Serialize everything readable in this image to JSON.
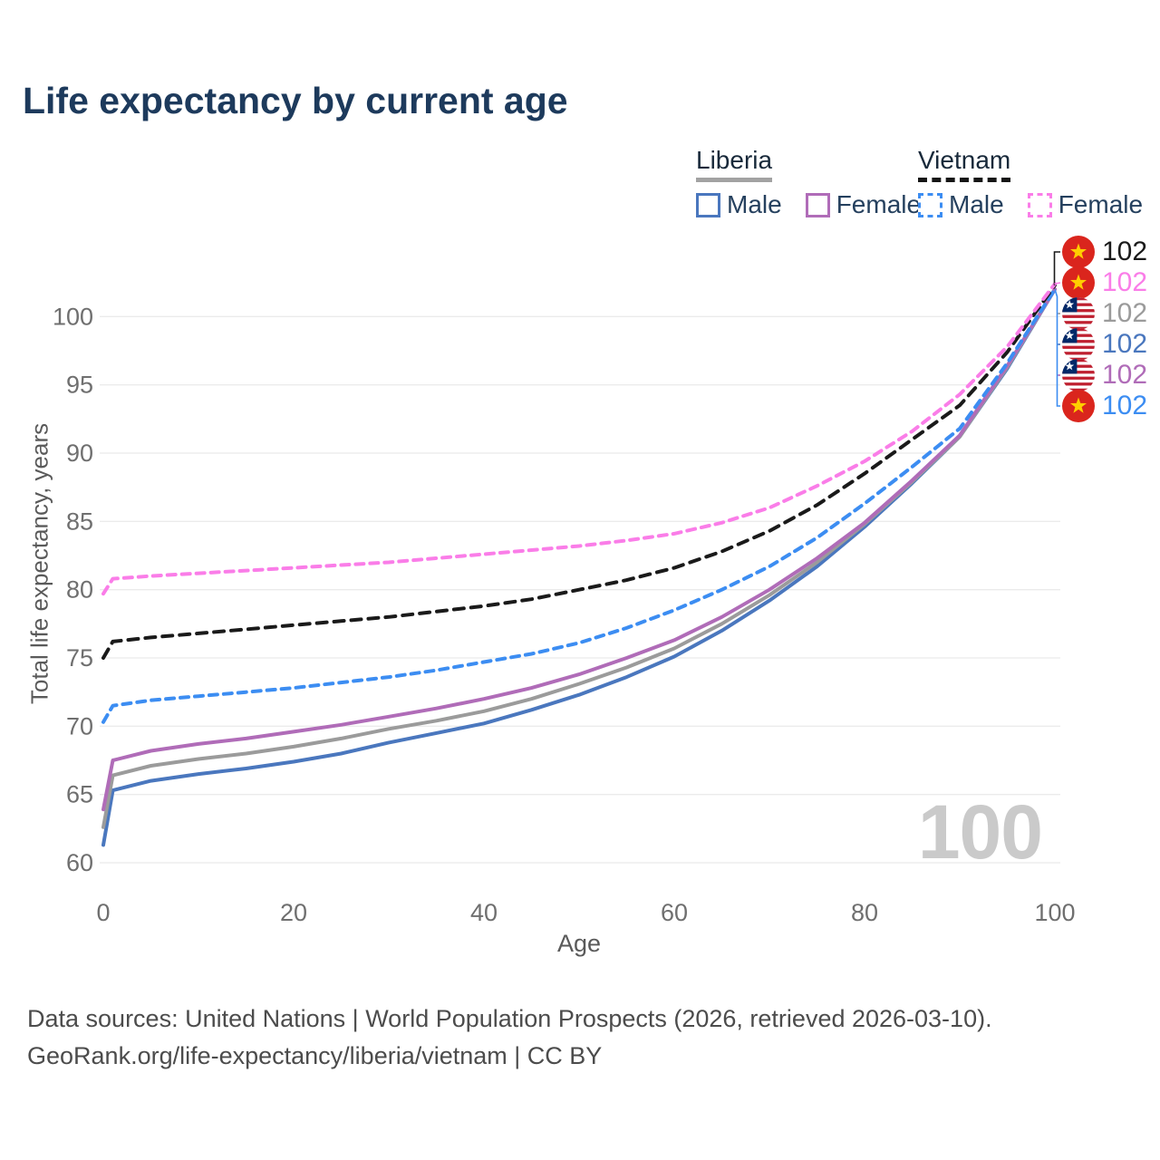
{
  "title": "Life expectancy by current age",
  "legend": {
    "groups": [
      {
        "country": "Liberia",
        "line_style": "solid",
        "underline_color": "#a2a2a2",
        "items": [
          {
            "label": "Male",
            "color": "#4a77be",
            "dash": "solid"
          },
          {
            "label": "Female",
            "color": "#b06cb8",
            "dash": "solid"
          }
        ]
      },
      {
        "country": "Vietnam",
        "line_style": "dashed",
        "underline_color": "#151515",
        "items": [
          {
            "label": "Male",
            "color": "#3c8df2",
            "dash": "dashed"
          },
          {
            "label": "Female",
            "color": "#fa7de8",
            "dash": "dashed"
          }
        ]
      }
    ]
  },
  "colors": {
    "grid": "#ebebeb",
    "tick_text": "#6f6f6f",
    "axis_title": "#5a5a5a",
    "title_text": "#1d3a5c",
    "watermark": "#cacaca",
    "footer_text": "#4c4c4c"
  },
  "chart_data": {
    "type": "line",
    "title": "Life expectancy by current age",
    "xlabel": "Age",
    "ylabel": "Total life expectancy, years",
    "xlim": [
      0,
      100
    ],
    "ylim": [
      60,
      102.5
    ],
    "xticks": [
      0,
      20,
      40,
      60,
      80,
      100
    ],
    "yticks": [
      60,
      65,
      70,
      75,
      80,
      85,
      90,
      95,
      100
    ],
    "grid": "horizontal",
    "legend_position": "top-right",
    "x": [
      0,
      1,
      5,
      10,
      15,
      20,
      25,
      30,
      35,
      40,
      45,
      50,
      55,
      60,
      65,
      70,
      75,
      80,
      85,
      90,
      95,
      100
    ],
    "series": [
      {
        "id": "liberia_male",
        "name": "Liberia Male",
        "color": "#4a77be",
        "dash": "solid",
        "values": [
          61.3,
          65.3,
          66.0,
          66.5,
          66.9,
          67.4,
          68.0,
          68.8,
          69.5,
          70.2,
          71.2,
          72.3,
          73.6,
          75.1,
          77.0,
          79.2,
          81.7,
          84.6,
          87.8,
          91.2,
          96.2,
          102.0
        ]
      },
      {
        "id": "liberia_total",
        "name": "Liberia",
        "color": "#9b9b9b",
        "dash": "solid",
        "values": [
          62.6,
          66.4,
          67.1,
          67.6,
          68.0,
          68.5,
          69.1,
          69.8,
          70.4,
          71.1,
          72.0,
          73.1,
          74.3,
          75.7,
          77.5,
          79.6,
          82.0,
          84.8,
          87.9,
          91.2,
          96.3,
          102.0
        ]
      },
      {
        "id": "liberia_female",
        "name": "Liberia Female",
        "color": "#b06cb8",
        "dash": "solid",
        "values": [
          63.9,
          67.5,
          68.2,
          68.7,
          69.1,
          69.6,
          70.1,
          70.7,
          71.3,
          72.0,
          72.8,
          73.8,
          75.0,
          76.3,
          78.0,
          80.0,
          82.3,
          84.9,
          88.0,
          91.3,
          96.4,
          102.0
        ]
      },
      {
        "id": "vietnam_male",
        "name": "Vietnam Male",
        "color": "#3c8df2",
        "dash": "dashed",
        "values": [
          70.3,
          71.5,
          71.9,
          72.2,
          72.5,
          72.8,
          73.2,
          73.6,
          74.1,
          74.7,
          75.3,
          76.1,
          77.2,
          78.5,
          80.0,
          81.7,
          83.8,
          86.3,
          89.0,
          91.8,
          96.6,
          102.0
        ]
      },
      {
        "id": "vietnam_total",
        "name": "Vietnam",
        "color": "#1a1a1a",
        "dash": "dashed",
        "values": [
          75.0,
          76.2,
          76.5,
          76.8,
          77.1,
          77.4,
          77.7,
          78.0,
          78.4,
          78.8,
          79.3,
          80.0,
          80.7,
          81.6,
          82.8,
          84.3,
          86.2,
          88.5,
          91.0,
          93.5,
          97.4,
          102.3
        ]
      },
      {
        "id": "vietnam_female",
        "name": "Vietnam Female",
        "color": "#fa7de8",
        "dash": "dashed",
        "values": [
          79.7,
          80.8,
          81.0,
          81.2,
          81.4,
          81.6,
          81.8,
          82.0,
          82.3,
          82.6,
          82.9,
          83.2,
          83.6,
          84.1,
          84.9,
          86.0,
          87.6,
          89.4,
          91.6,
          94.3,
          97.8,
          102.4
        ]
      }
    ]
  },
  "end_labels": [
    {
      "flag": "vietnam",
      "flag_ref": "#flag-vn",
      "series": "vietnam_total",
      "value": "102"
    },
    {
      "flag": "vietnam",
      "flag_ref": "#flag-vn",
      "series": "vietnam_female",
      "value": "102"
    },
    {
      "flag": "liberia",
      "flag_ref": "#flag-lr",
      "series": "liberia_total",
      "value": "102"
    },
    {
      "flag": "liberia",
      "flag_ref": "#flag-lr",
      "series": "liberia_male",
      "value": "102"
    },
    {
      "flag": "liberia",
      "flag_ref": "#flag-lr",
      "series": "liberia_female",
      "value": "102"
    },
    {
      "flag": "vietnam",
      "flag_ref": "#flag-vn",
      "series": "vietnam_male",
      "value": "102"
    }
  ],
  "watermark": "100",
  "footer": {
    "line1": "Data sources: United Nations | World Population Prospects (2026, retrieved 2026-03-10).",
    "line2": "GeoRank.org/life-expectancy/liberia/vietnam | CC BY"
  }
}
